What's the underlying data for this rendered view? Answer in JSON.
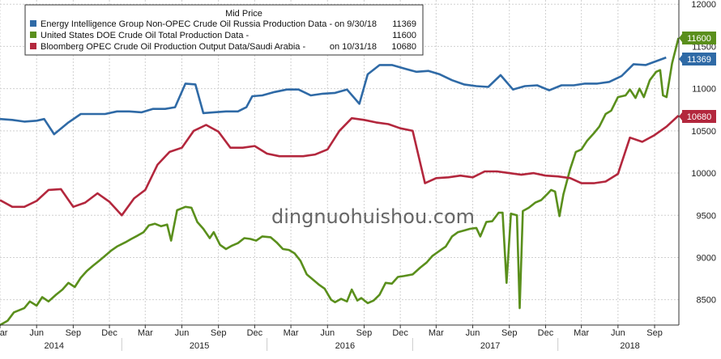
{
  "watermark": "dingnuohuishou.com",
  "chart_data": {
    "type": "line",
    "title": "Mid Price",
    "ylim": [
      8200,
      12050
    ],
    "yticks": [
      8500,
      9000,
      9500,
      10000,
      10500,
      11000,
      11500,
      12000
    ],
    "x_start": "2014-03",
    "x_end": "2018-11",
    "month_ticks": [
      "Mar",
      "Jun",
      "Sep",
      "Dec",
      "Mar",
      "Jun",
      "Sep",
      "Dec",
      "Mar",
      "Jun",
      "Sep",
      "Dec",
      "Mar",
      "Jun",
      "Sep",
      "Dec",
      "Mar",
      "Jun",
      "Sep"
    ],
    "month_tick_dates": [
      "2014-03",
      "2014-06",
      "2014-09",
      "2014-12",
      "2015-03",
      "2015-06",
      "2015-09",
      "2015-12",
      "2016-03",
      "2016-06",
      "2016-09",
      "2016-12",
      "2017-03",
      "2017-06",
      "2017-09",
      "2017-12",
      "2018-03",
      "2018-06",
      "2018-09"
    ],
    "years": [
      "2014",
      "2015",
      "2016",
      "2017",
      "2018"
    ],
    "year_label_dates": [
      "2014-07-15",
      "2015-07-15",
      "2016-07-15",
      "2017-07-15",
      "2018-07-01"
    ],
    "year_divider_dates": [
      "2015-01",
      "2016-01",
      "2017-01",
      "2018-01"
    ],
    "legend": [
      {
        "name": "Energy Intelligence Group Non-OPEC Crude Oil Russia Production Data",
        "last": "on 9/30/18",
        "value": "11369"
      },
      {
        "name": "United States DOE Crude Oil Total Production Data",
        "last": "",
        "value": "11600"
      },
      {
        "name": "Bloomberg OPEC Crude Oil Production Output Data/Saudi Arabia",
        "last": "on 10/31/18",
        "value": "10680"
      }
    ],
    "series": [
      {
        "name": "Energy Intelligence Group Non-OPEC Crude Oil Russia Production Data",
        "color": "#2f6aa6",
        "points": [
          [
            "2014-03-01",
            10640
          ],
          [
            "2014-04-01",
            10630
          ],
          [
            "2014-05-01",
            10610
          ],
          [
            "2014-06-01",
            10620
          ],
          [
            "2014-06-20",
            10640
          ],
          [
            "2014-07-15",
            10460
          ],
          [
            "2014-08-20",
            10600
          ],
          [
            "2014-09-20",
            10700
          ],
          [
            "2014-10-20",
            10700
          ],
          [
            "2014-11-20",
            10700
          ],
          [
            "2014-12-20",
            10730
          ],
          [
            "2015-01-20",
            10730
          ],
          [
            "2015-02-20",
            10720
          ],
          [
            "2015-03-20",
            10760
          ],
          [
            "2015-04-20",
            10760
          ],
          [
            "2015-05-15",
            10780
          ],
          [
            "2015-06-10",
            11060
          ],
          [
            "2015-07-05",
            11050
          ],
          [
            "2015-07-25",
            10710
          ],
          [
            "2015-08-20",
            10720
          ],
          [
            "2015-09-20",
            10730
          ],
          [
            "2015-10-20",
            10730
          ],
          [
            "2015-11-10",
            10780
          ],
          [
            "2015-11-25",
            10910
          ],
          [
            "2015-12-20",
            10920
          ],
          [
            "2016-01-20",
            10960
          ],
          [
            "2016-02-20",
            10990
          ],
          [
            "2016-03-20",
            10990
          ],
          [
            "2016-04-20",
            10920
          ],
          [
            "2016-05-20",
            10940
          ],
          [
            "2016-06-20",
            10950
          ],
          [
            "2016-07-20",
            10990
          ],
          [
            "2016-08-20",
            10820
          ],
          [
            "2016-09-10",
            11170
          ],
          [
            "2016-10-10",
            11280
          ],
          [
            "2016-11-10",
            11280
          ],
          [
            "2016-12-10",
            11240
          ],
          [
            "2017-01-10",
            11200
          ],
          [
            "2017-02-10",
            11210
          ],
          [
            "2017-03-10",
            11170
          ],
          [
            "2017-04-10",
            11100
          ],
          [
            "2017-05-10",
            11050
          ],
          [
            "2017-06-10",
            11030
          ],
          [
            "2017-07-10",
            11020
          ],
          [
            "2017-08-10",
            11160
          ],
          [
            "2017-09-10",
            10990
          ],
          [
            "2017-10-10",
            11030
          ],
          [
            "2017-11-10",
            11040
          ],
          [
            "2017-12-10",
            10980
          ],
          [
            "2018-01-10",
            11040
          ],
          [
            "2018-02-10",
            11040
          ],
          [
            "2018-03-10",
            11060
          ],
          [
            "2018-04-10",
            11060
          ],
          [
            "2018-05-10",
            11080
          ],
          [
            "2018-06-10",
            11150
          ],
          [
            "2018-07-10",
            11290
          ],
          [
            "2018-08-10",
            11280
          ],
          [
            "2018-09-30",
            11369
          ]
        ]
      },
      {
        "name": "United States DOE Crude Oil Total Production Data",
        "color": "#5a8f1c",
        "points": [
          [
            "2014-03-01",
            8200
          ],
          [
            "2014-03-20",
            8250
          ],
          [
            "2014-04-05",
            8350
          ],
          [
            "2014-05-01",
            8400
          ],
          [
            "2014-05-15",
            8480
          ],
          [
            "2014-06-01",
            8430
          ],
          [
            "2014-06-15",
            8530
          ],
          [
            "2014-07-01",
            8480
          ],
          [
            "2014-07-20",
            8560
          ],
          [
            "2014-08-05",
            8620
          ],
          [
            "2014-08-20",
            8700
          ],
          [
            "2014-09-05",
            8650
          ],
          [
            "2014-09-20",
            8760
          ],
          [
            "2014-10-05",
            8840
          ],
          [
            "2014-10-20",
            8900
          ],
          [
            "2014-11-05",
            8960
          ],
          [
            "2014-11-20",
            9020
          ],
          [
            "2014-12-05",
            9080
          ],
          [
            "2014-12-20",
            9130
          ],
          [
            "2015-01-10",
            9180
          ],
          [
            "2015-01-25",
            9220
          ],
          [
            "2015-02-10",
            9260
          ],
          [
            "2015-02-25",
            9300
          ],
          [
            "2015-03-10",
            9380
          ],
          [
            "2015-03-25",
            9400
          ],
          [
            "2015-04-10",
            9370
          ],
          [
            "2015-04-25",
            9390
          ],
          [
            "2015-05-05",
            9200
          ],
          [
            "2015-05-20",
            9560
          ],
          [
            "2015-06-10",
            9600
          ],
          [
            "2015-06-25",
            9590
          ],
          [
            "2015-07-10",
            9420
          ],
          [
            "2015-07-25",
            9340
          ],
          [
            "2015-08-10",
            9230
          ],
          [
            "2015-08-20",
            9300
          ],
          [
            "2015-09-05",
            9150
          ],
          [
            "2015-09-20",
            9100
          ],
          [
            "2015-10-05",
            9140
          ],
          [
            "2015-10-20",
            9170
          ],
          [
            "2015-11-05",
            9230
          ],
          [
            "2015-11-20",
            9220
          ],
          [
            "2015-12-05",
            9200
          ],
          [
            "2015-12-20",
            9250
          ],
          [
            "2016-01-10",
            9240
          ],
          [
            "2016-01-25",
            9180
          ],
          [
            "2016-02-10",
            9100
          ],
          [
            "2016-02-25",
            9090
          ],
          [
            "2016-03-10",
            9050
          ],
          [
            "2016-03-25",
            8960
          ],
          [
            "2016-04-10",
            8800
          ],
          [
            "2016-04-25",
            8740
          ],
          [
            "2016-05-10",
            8680
          ],
          [
            "2016-05-25",
            8630
          ],
          [
            "2016-06-10",
            8500
          ],
          [
            "2016-06-20",
            8470
          ],
          [
            "2016-07-05",
            8510
          ],
          [
            "2016-07-20",
            8480
          ],
          [
            "2016-08-01",
            8620
          ],
          [
            "2016-08-15",
            8490
          ],
          [
            "2016-08-25",
            8520
          ],
          [
            "2016-09-10",
            8460
          ],
          [
            "2016-09-25",
            8490
          ],
          [
            "2016-10-10",
            8560
          ],
          [
            "2016-10-25",
            8700
          ],
          [
            "2016-11-10",
            8690
          ],
          [
            "2016-11-25",
            8770
          ],
          [
            "2016-12-10",
            8780
          ],
          [
            "2017-01-01",
            8800
          ],
          [
            "2017-01-20",
            8880
          ],
          [
            "2017-02-05",
            8940
          ],
          [
            "2017-02-20",
            9020
          ],
          [
            "2017-03-10",
            9080
          ],
          [
            "2017-03-25",
            9130
          ],
          [
            "2017-04-10",
            9250
          ],
          [
            "2017-04-25",
            9300
          ],
          [
            "2017-05-10",
            9320
          ],
          [
            "2017-05-25",
            9340
          ],
          [
            "2017-06-10",
            9350
          ],
          [
            "2017-06-20",
            9250
          ],
          [
            "2017-07-05",
            9420
          ],
          [
            "2017-07-20",
            9430
          ],
          [
            "2017-08-05",
            9530
          ],
          [
            "2017-08-15",
            9530
          ],
          [
            "2017-08-25",
            8700
          ],
          [
            "2017-09-05",
            9520
          ],
          [
            "2017-09-20",
            9500
          ],
          [
            "2017-09-27",
            8400
          ],
          [
            "2017-10-05",
            9550
          ],
          [
            "2017-10-20",
            9590
          ],
          [
            "2017-11-05",
            9650
          ],
          [
            "2017-11-20",
            9680
          ],
          [
            "2017-12-05",
            9750
          ],
          [
            "2017-12-15",
            9800
          ],
          [
            "2017-12-25",
            9780
          ],
          [
            "2018-01-05",
            9490
          ],
          [
            "2018-01-15",
            9750
          ],
          [
            "2018-02-01",
            10050
          ],
          [
            "2018-02-15",
            10250
          ],
          [
            "2018-03-01",
            10280
          ],
          [
            "2018-03-15",
            10380
          ],
          [
            "2018-04-01",
            10470
          ],
          [
            "2018-04-15",
            10550
          ],
          [
            "2018-05-01",
            10700
          ],
          [
            "2018-05-15",
            10740
          ],
          [
            "2018-06-01",
            10900
          ],
          [
            "2018-06-20",
            10920
          ],
          [
            "2018-07-01",
            10990
          ],
          [
            "2018-07-15",
            10890
          ],
          [
            "2018-07-25",
            11000
          ],
          [
            "2018-08-05",
            10900
          ],
          [
            "2018-08-20",
            11100
          ],
          [
            "2018-09-05",
            11200
          ],
          [
            "2018-09-15",
            11220
          ],
          [
            "2018-09-22",
            10920
          ],
          [
            "2018-10-01",
            10900
          ],
          [
            "2018-10-15",
            11300
          ],
          [
            "2018-10-31",
            11600
          ]
        ]
      },
      {
        "name": "Bloomberg OPEC Crude Oil Production Output Data/Saudi Arabia",
        "color": "#b3273d",
        "points": [
          [
            "2014-03-01",
            9680
          ],
          [
            "2014-04-01",
            9600
          ],
          [
            "2014-05-01",
            9600
          ],
          [
            "2014-06-01",
            9670
          ],
          [
            "2014-07-01",
            9800
          ],
          [
            "2014-08-01",
            9810
          ],
          [
            "2014-09-01",
            9600
          ],
          [
            "2014-10-01",
            9650
          ],
          [
            "2014-11-01",
            9760
          ],
          [
            "2014-12-01",
            9660
          ],
          [
            "2015-01-01",
            9500
          ],
          [
            "2015-02-01",
            9700
          ],
          [
            "2015-03-01",
            9800
          ],
          [
            "2015-04-01",
            10100
          ],
          [
            "2015-05-01",
            10250
          ],
          [
            "2015-06-01",
            10300
          ],
          [
            "2015-07-01",
            10500
          ],
          [
            "2015-08-01",
            10570
          ],
          [
            "2015-09-01",
            10490
          ],
          [
            "2015-10-01",
            10300
          ],
          [
            "2015-11-01",
            10300
          ],
          [
            "2015-12-01",
            10320
          ],
          [
            "2016-01-01",
            10230
          ],
          [
            "2016-02-01",
            10200
          ],
          [
            "2016-03-01",
            10200
          ],
          [
            "2016-04-01",
            10200
          ],
          [
            "2016-05-01",
            10220
          ],
          [
            "2016-06-01",
            10280
          ],
          [
            "2016-07-01",
            10500
          ],
          [
            "2016-08-01",
            10650
          ],
          [
            "2016-09-01",
            10630
          ],
          [
            "2016-10-01",
            10600
          ],
          [
            "2016-11-01",
            10580
          ],
          [
            "2016-12-01",
            10530
          ],
          [
            "2017-01-01",
            10500
          ],
          [
            "2017-02-01",
            9880
          ],
          [
            "2017-03-01",
            9940
          ],
          [
            "2017-04-01",
            9950
          ],
          [
            "2017-05-01",
            9970
          ],
          [
            "2017-06-01",
            9950
          ],
          [
            "2017-07-01",
            10020
          ],
          [
            "2017-08-01",
            10020
          ],
          [
            "2017-09-01",
            10000
          ],
          [
            "2017-10-01",
            9980
          ],
          [
            "2017-11-01",
            10000
          ],
          [
            "2017-12-01",
            9970
          ],
          [
            "2018-01-01",
            9960
          ],
          [
            "2018-02-01",
            9940
          ],
          [
            "2018-03-01",
            9880
          ],
          [
            "2018-04-01",
            9880
          ],
          [
            "2018-05-01",
            9900
          ],
          [
            "2018-06-01",
            9990
          ],
          [
            "2018-07-01",
            10420
          ],
          [
            "2018-08-01",
            10370
          ],
          [
            "2018-09-01",
            10450
          ],
          [
            "2018-10-01",
            10550
          ],
          [
            "2018-10-31",
            10680
          ]
        ]
      }
    ]
  }
}
